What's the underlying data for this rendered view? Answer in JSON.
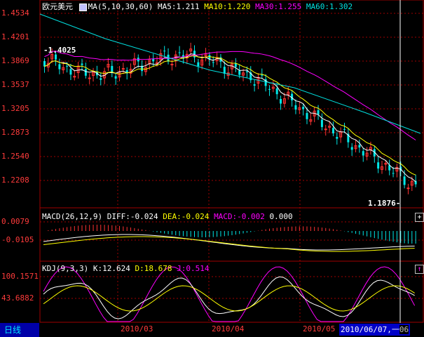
{
  "instrument": "欧元美元",
  "ma": {
    "title": "MA(5,10,30,60)",
    "ma5": "MA5:1.211",
    "ma10": "MA10:1.220",
    "ma30": "MA30:1.255",
    "ma60": "MA60:1.302"
  },
  "macd": {
    "title": "MACD(26,12,9)",
    "diff": "DIFF:-0.024",
    "dea": "DEA:-0.024",
    "macd": "MACD:-0.002",
    "extra": "0.000"
  },
  "kdj": {
    "title": "KDJ(9,3,3)",
    "k": "K:12.624",
    "d": "D:18.678",
    "j": "J:0.514"
  },
  "price_axis": [
    "1.4534",
    "1.4201",
    "1.3869",
    "1.3537",
    "1.3205",
    "1.2873",
    "1.2540",
    "1.2208"
  ],
  "macd_axis": [
    "0.0079",
    "-0.0105"
  ],
  "kdj_axis": [
    "100.1571",
    "43.6882"
  ],
  "annotations": {
    "high": "1.4025",
    "low": "1.1876"
  },
  "x_axis": [
    "2010/03",
    "2010/04",
    "2010/05"
  ],
  "cursor_date": "2010/06/07,一",
  "cursor_tail": "06",
  "period_tab": "日线",
  "buttons": {
    "plus": "+",
    "up": "↑"
  },
  "colors": {
    "up": "#ff3333",
    "down": "#00e8e8",
    "ma5": "#ffffff",
    "ma10": "#ffff00",
    "ma30": "#ff00ff",
    "ma60": "#00e0e0",
    "grid": "#a00000",
    "axis_text": "#ff3b3b"
  }
}
